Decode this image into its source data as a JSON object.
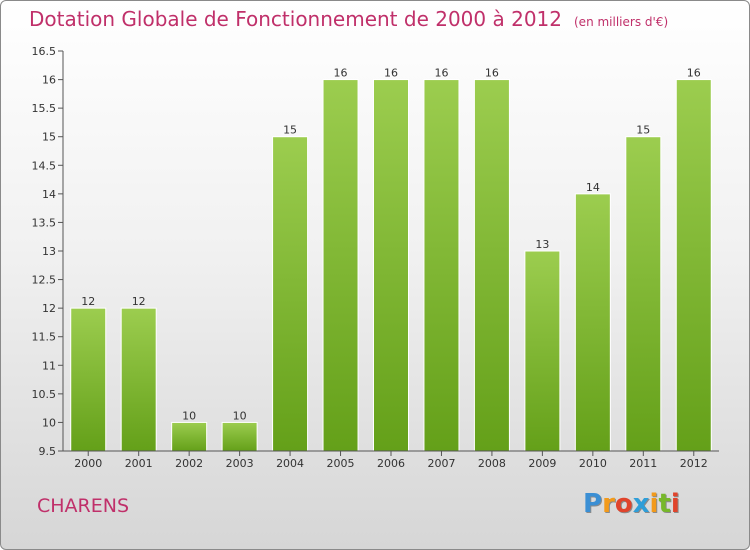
{
  "chart_data": {
    "type": "bar",
    "title": "Dotation Globale de Fonctionnement de 2000 à 2012",
    "unit": "(en milliers d'€)",
    "categories": [
      "2000",
      "2001",
      "2002",
      "2003",
      "2004",
      "2005",
      "2006",
      "2007",
      "2008",
      "2009",
      "2010",
      "2011",
      "2012"
    ],
    "values": [
      12,
      12,
      10,
      10,
      15,
      16,
      16,
      16,
      16,
      13,
      14,
      15,
      16
    ],
    "data_labels": [
      "12",
      "12",
      "10",
      "10",
      "15",
      "16",
      "16",
      "16",
      "16",
      "13",
      "14",
      "15",
      "16"
    ],
    "ylim": [
      9.5,
      16.5
    ],
    "yticks": [
      "9.5",
      "10",
      "10.5",
      "11",
      "11.5",
      "12",
      "12.5",
      "13",
      "13.5",
      "14",
      "14.5",
      "15",
      "15.5",
      "16",
      "16.5"
    ],
    "grid": false,
    "bar_color_top": "#9ccd4f",
    "bar_color_bottom": "#64a019"
  },
  "commune": "CHARENS",
  "logo": {
    "letters": [
      "P",
      "r",
      "o",
      "x",
      "i",
      "t",
      "i"
    ],
    "colors": [
      "#3b8fd4",
      "#f29a1b",
      "#e0442c",
      "#2f9ed8",
      "#f29a1b",
      "#77b82a",
      "#e0442c"
    ]
  }
}
